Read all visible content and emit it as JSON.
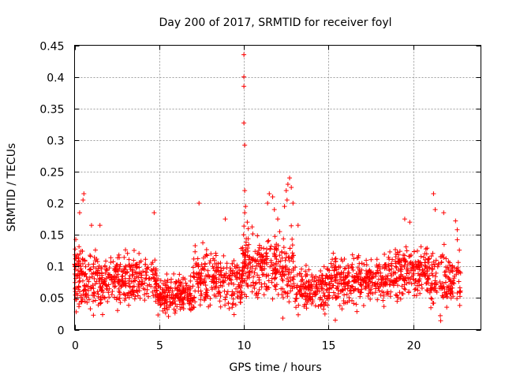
{
  "chart_data": {
    "type": "scatter",
    "title": "Day 200 of 2017, SRMTID for receiver foyl",
    "xlabel": "GPS time / hours",
    "ylabel": "SRMTID / TECUs",
    "xlim": [
      0,
      24
    ],
    "ylim": [
      0,
      0.45
    ],
    "xticks": [
      0,
      5,
      10,
      15,
      20
    ],
    "xtick_labels": [
      "0",
      "5",
      "10",
      "15",
      "20"
    ],
    "yticks": [
      0,
      0.05,
      0.1,
      0.15,
      0.2,
      0.25,
      0.3,
      0.35,
      0.4,
      0.45
    ],
    "ytick_labels": [
      "0",
      "0.05",
      "0.1",
      "0.15",
      "0.2",
      "0.25",
      "0.3",
      "0.35",
      "0.4",
      "0.45"
    ],
    "grid": true,
    "marker": "+",
    "color": "#ff0000",
    "x_data_range": [
      0,
      22.8
    ],
    "seed": 2017,
    "series": [
      {
        "name": "SRMTID",
        "bands": [
          {
            "x": [
              0,
              0.5
            ],
            "center": 0.085,
            "spread": 0.05,
            "count": 70
          },
          {
            "x": [
              0.5,
              2.0
            ],
            "center": 0.075,
            "spread": 0.045,
            "count": 130
          },
          {
            "x": [
              2.0,
              4.9
            ],
            "center": 0.08,
            "spread": 0.04,
            "count": 240
          },
          {
            "x": [
              4.9,
              7.0
            ],
            "center": 0.055,
            "spread": 0.03,
            "count": 190
          },
          {
            "x": [
              7.0,
              8.5
            ],
            "center": 0.08,
            "spread": 0.045,
            "count": 130
          },
          {
            "x": [
              8.5,
              9.9
            ],
            "center": 0.075,
            "spread": 0.04,
            "count": 110
          },
          {
            "x": [
              9.9,
              11.0
            ],
            "center": 0.1,
            "spread": 0.05,
            "count": 110
          },
          {
            "x": [
              11.0,
              13.0
            ],
            "center": 0.1,
            "spread": 0.055,
            "count": 170
          },
          {
            "x": [
              13.0,
              15.0
            ],
            "center": 0.065,
            "spread": 0.035,
            "count": 170
          },
          {
            "x": [
              15.0,
              18.5
            ],
            "center": 0.08,
            "spread": 0.04,
            "count": 300
          },
          {
            "x": [
              18.5,
              20.8
            ],
            "center": 0.09,
            "spread": 0.045,
            "count": 200
          },
          {
            "x": [
              20.8,
              22.8
            ],
            "center": 0.08,
            "spread": 0.045,
            "count": 160
          }
        ],
        "highlights": [
          {
            "x": 0.55,
            "y": 0.215
          },
          {
            "x": 0.5,
            "y": 0.205
          },
          {
            "x": 0.3,
            "y": 0.185
          },
          {
            "x": 1.0,
            "y": 0.165
          },
          {
            "x": 1.5,
            "y": 0.165
          },
          {
            "x": 4.7,
            "y": 0.185
          },
          {
            "x": 7.35,
            "y": 0.2
          },
          {
            "x": 8.9,
            "y": 0.175
          },
          {
            "x": 10.0,
            "y": 0.435
          },
          {
            "x": 10.0,
            "y": 0.4
          },
          {
            "x": 10.0,
            "y": 0.385
          },
          {
            "x": 10.0,
            "y": 0.327
          },
          {
            "x": 10.05,
            "y": 0.292
          },
          {
            "x": 10.05,
            "y": 0.22
          },
          {
            "x": 10.1,
            "y": 0.195
          },
          {
            "x": 10.05,
            "y": 0.185
          },
          {
            "x": 10.2,
            "y": 0.17
          },
          {
            "x": 11.5,
            "y": 0.215
          },
          {
            "x": 11.7,
            "y": 0.21
          },
          {
            "x": 11.4,
            "y": 0.2
          },
          {
            "x": 11.8,
            "y": 0.19
          },
          {
            "x": 12.0,
            "y": 0.175
          },
          {
            "x": 12.7,
            "y": 0.24
          },
          {
            "x": 12.6,
            "y": 0.23
          },
          {
            "x": 12.8,
            "y": 0.225
          },
          {
            "x": 12.5,
            "y": 0.22
          },
          {
            "x": 12.55,
            "y": 0.205
          },
          {
            "x": 12.9,
            "y": 0.2
          },
          {
            "x": 12.4,
            "y": 0.195
          },
          {
            "x": 13.2,
            "y": 0.165
          },
          {
            "x": 19.5,
            "y": 0.175
          },
          {
            "x": 19.8,
            "y": 0.17
          },
          {
            "x": 21.2,
            "y": 0.215
          },
          {
            "x": 21.3,
            "y": 0.19
          },
          {
            "x": 21.8,
            "y": 0.185
          },
          {
            "x": 22.5,
            "y": 0.172
          },
          {
            "x": 22.6,
            "y": 0.158
          },
          {
            "x": 15.4,
            "y": 0.015
          },
          {
            "x": 12.3,
            "y": 0.018
          },
          {
            "x": 21.6,
            "y": 0.022
          },
          {
            "x": 0.1,
            "y": 0.028
          }
        ]
      }
    ]
  }
}
